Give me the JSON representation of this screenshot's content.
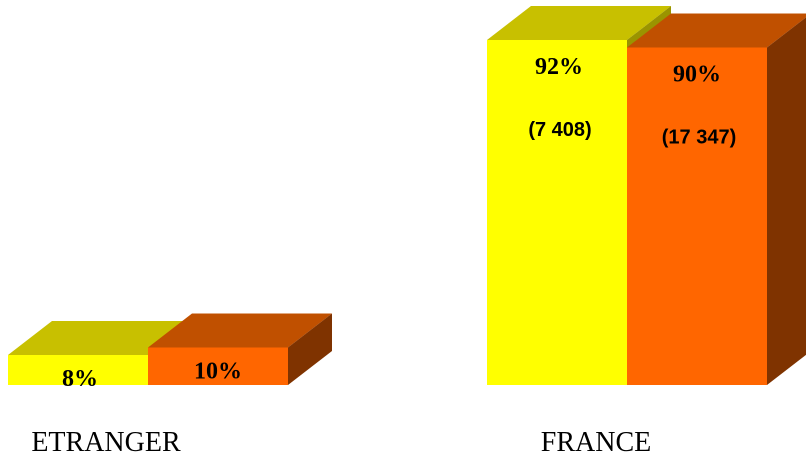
{
  "chart_data": {
    "type": "bar",
    "categories": [
      "ETRANGER",
      "FRANCE"
    ],
    "series": [
      {
        "values": [
          8,
          92
        ],
        "labels": [
          "8%",
          "92%"
        ],
        "counts": [
          "",
          "(7 408)"
        ]
      },
      {
        "values": [
          10,
          90
        ],
        "labels": [
          "10%",
          "90%"
        ],
        "counts": [
          "",
          "(17 347)"
        ]
      }
    ],
    "colors": {
      "series_0": {
        "front": "#ffff00",
        "top": "#c8c000",
        "side": "#9a9400"
      },
      "series_1": {
        "front": "#ff6600",
        "top": "#c05000",
        "side": "#7f3300"
      }
    },
    "ylim": [
      0,
      100
    ],
    "grid": false,
    "legend": "none",
    "style": "3d"
  }
}
